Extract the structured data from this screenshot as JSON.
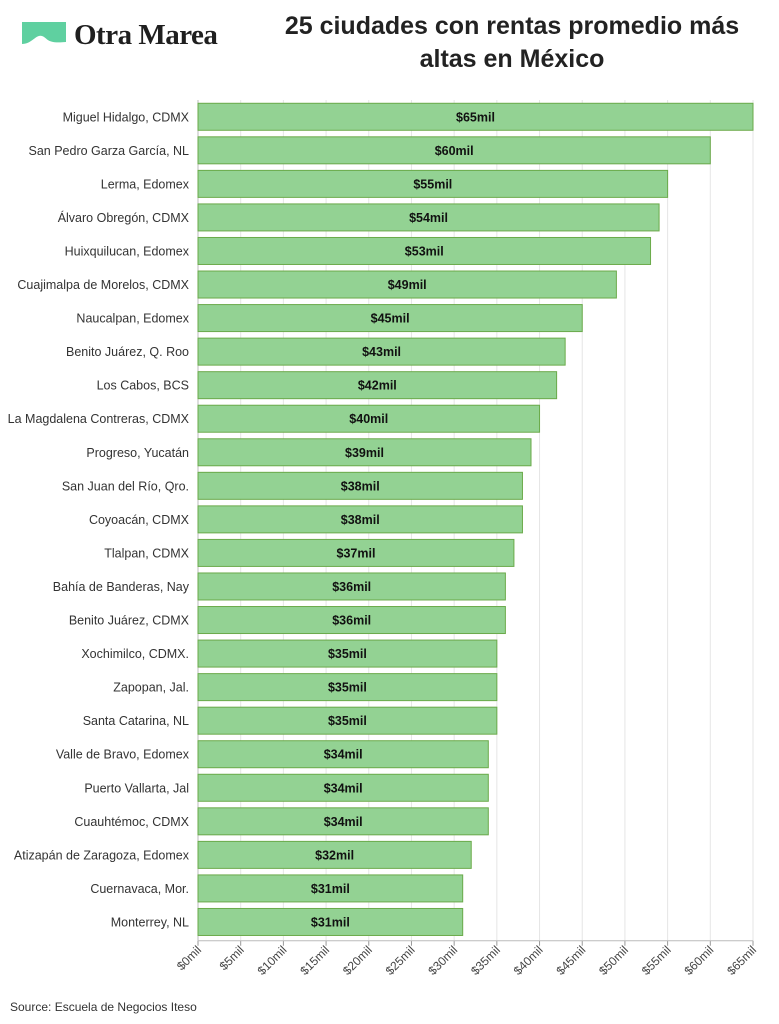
{
  "brand": {
    "name": "Otra Marea",
    "color": "#5fd0a0"
  },
  "title": "25 ciudades con rentas promedio más altas en México",
  "source": "Source: Escuela de Negocios Iteso",
  "colors": {
    "bar_fill": "#93d293",
    "bar_stroke": "#6aaa4a",
    "grid": "#e6e6e6"
  },
  "chart_data": {
    "type": "bar",
    "orientation": "horizontal",
    "title": "25 ciudades con rentas promedio más altas en México",
    "xlim": [
      0,
      65
    ],
    "x_ticks": [
      "$0mil",
      "$5mil",
      "$10mil",
      "$15mil",
      "$20mil",
      "$25mil",
      "$30mil",
      "$35mil",
      "$40mil",
      "$45mil",
      "$50mil",
      "$55mil",
      "$60mil",
      "$65mil"
    ],
    "x_tick_values": [
      0,
      5,
      10,
      15,
      20,
      25,
      30,
      35,
      40,
      45,
      50,
      55,
      60,
      65
    ],
    "grid": true,
    "categories": [
      "Miguel Hidalgo, CDMX",
      "San Pedro Garza García, NL",
      "Lerma, Edomex",
      "Álvaro Obregón, CDMX",
      "Huixquilucan, Edomex",
      "Cuajimalpa de Morelos, CDMX",
      "Naucalpan, Edomex",
      "Benito Juárez, Q. Roo",
      "Los Cabos, BCS",
      "La Magdalena Contreras, CDMX",
      "Progreso, Yucatán",
      "San Juan del Río, Qro.",
      "Coyoacán, CDMX",
      "Tlalpan, CDMX",
      "Bahía de Banderas, Nay",
      "Benito Juárez, CDMX",
      "Xochimilco, CDMX.",
      "Zapopan, Jal.",
      "Santa Catarina, NL",
      "Valle de Bravo, Edomex",
      "Puerto Vallarta, Jal",
      "Cuauhtémoc, CDMX",
      "Atizapán de Zaragoza, Edomex",
      "Cuernavaca, Mor.",
      "Monterrey, NL"
    ],
    "values": [
      65,
      60,
      55,
      54,
      53,
      49,
      45,
      43,
      42,
      40,
      39,
      38,
      38,
      37,
      36,
      36,
      35,
      35,
      35,
      34,
      34,
      34,
      32,
      31,
      31
    ],
    "data_labels": [
      "$65mil",
      "$60mil",
      "$55mil",
      "$54mil",
      "$53mil",
      "$49mil",
      "$45mil",
      "$43mil",
      "$42mil",
      "$40mil",
      "$39mil",
      "$38mil",
      "$38mil",
      "$37mil",
      "$36mil",
      "$36mil",
      "$35mil",
      "$35mil",
      "$35mil",
      "$34mil",
      "$34mil",
      "$34mil",
      "$32mil",
      "$31mil",
      "$31mil"
    ]
  }
}
